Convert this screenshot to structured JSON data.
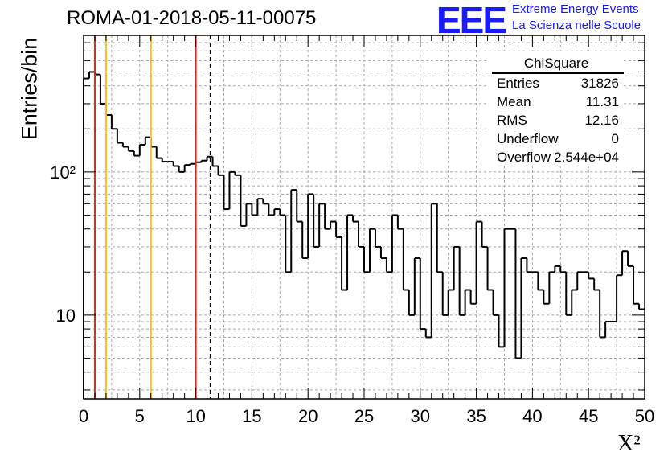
{
  "title": "ROMA-01-2018-05-11-00075",
  "logo": {
    "mark": "EEE",
    "line1": "Extreme Energy Events",
    "line2": "La Scienza nelle Scuole"
  },
  "stats": {
    "name": "ChiSquare",
    "rows": [
      {
        "key": "Entries",
        "value": "31826"
      },
      {
        "key": "Mean",
        "value": "11.31"
      },
      {
        "key": "RMS",
        "value": "12.16"
      },
      {
        "key": "Underflow",
        "value": "0"
      },
      {
        "key": "Overflow",
        "value": "2.544e+04"
      }
    ]
  },
  "chart_data": {
    "type": "histogram",
    "xlabel": "X²",
    "ylabel": "Entries/bin",
    "xlim": [
      0,
      50
    ],
    "ylim": [
      2.6,
      900
    ],
    "yscale": "log",
    "grid": true,
    "x_ticks": [
      "0",
      "5",
      "10",
      "15",
      "20",
      "25",
      "30",
      "35",
      "40",
      "45",
      "50"
    ],
    "y_tick_labels": [
      "10",
      "10²"
    ],
    "bin_width": 0.5,
    "values": [
      450,
      500,
      480,
      300,
      250,
      200,
      160,
      150,
      140,
      130,
      155,
      175,
      150,
      125,
      118,
      118,
      110,
      100,
      112,
      114,
      117,
      120,
      128,
      110,
      95,
      55,
      100,
      95,
      42,
      60,
      50,
      65,
      60,
      50,
      55,
      50,
      20,
      75,
      45,
      25,
      70,
      30,
      60,
      40,
      45,
      35,
      15,
      50,
      45,
      30,
      20,
      40,
      30,
      25,
      20,
      50,
      40,
      15,
      10,
      25,
      8,
      7,
      60,
      20,
      10,
      15,
      30,
      10,
      15,
      12,
      45,
      30,
      15,
      10,
      6,
      40,
      40,
      5,
      25,
      20,
      20,
      15,
      12,
      20,
      22,
      20,
      10,
      15,
      20,
      20,
      18,
      15,
      7,
      9,
      9,
      19,
      28,
      22,
      12,
      11
    ],
    "vertical_lines": [
      {
        "x": 1,
        "color": "#e8201f",
        "style": "solid"
      },
      {
        "x": 2,
        "color": "#f5c020",
        "style": "solid"
      },
      {
        "x": 6,
        "color": "#f5c020",
        "style": "solid"
      },
      {
        "x": 10,
        "color": "#e8201f",
        "style": "solid"
      },
      {
        "x": 11.31,
        "color": "#000000",
        "style": "dashed"
      }
    ]
  }
}
